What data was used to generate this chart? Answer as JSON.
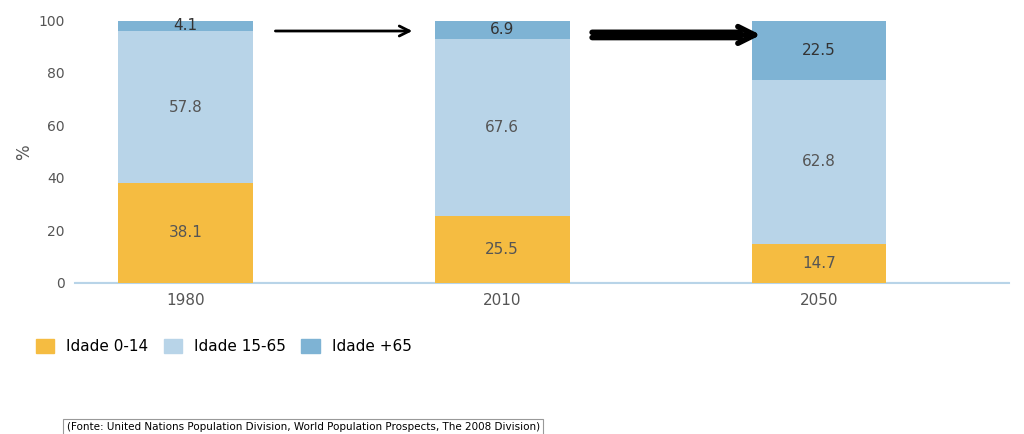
{
  "years": [
    "1980",
    "2010",
    "2050"
  ],
  "values_0_14": [
    38.1,
    25.5,
    14.7
  ],
  "values_15_65": [
    57.8,
    67.6,
    62.8
  ],
  "values_65plus": [
    4.1,
    6.9,
    22.5
  ],
  "color_0_14": "#F5BC41",
  "color_15_65": "#B8D4E8",
  "color_65plus": "#7EB3D4",
  "ylim": [
    0,
    100
  ],
  "yticks": [
    0,
    20,
    40,
    60,
    80,
    100
  ],
  "ylabel": "%",
  "legend_labels": [
    "Idade 0-14",
    "Idade 15-65",
    "Idade +65"
  ],
  "footnote": "(Fonte: United Nations Population Division, World Population Prospects, The 2008 Division)",
  "background_color": "#FFFFFF",
  "bar_positions": [
    1,
    3,
    5
  ],
  "bar_width": 0.85
}
